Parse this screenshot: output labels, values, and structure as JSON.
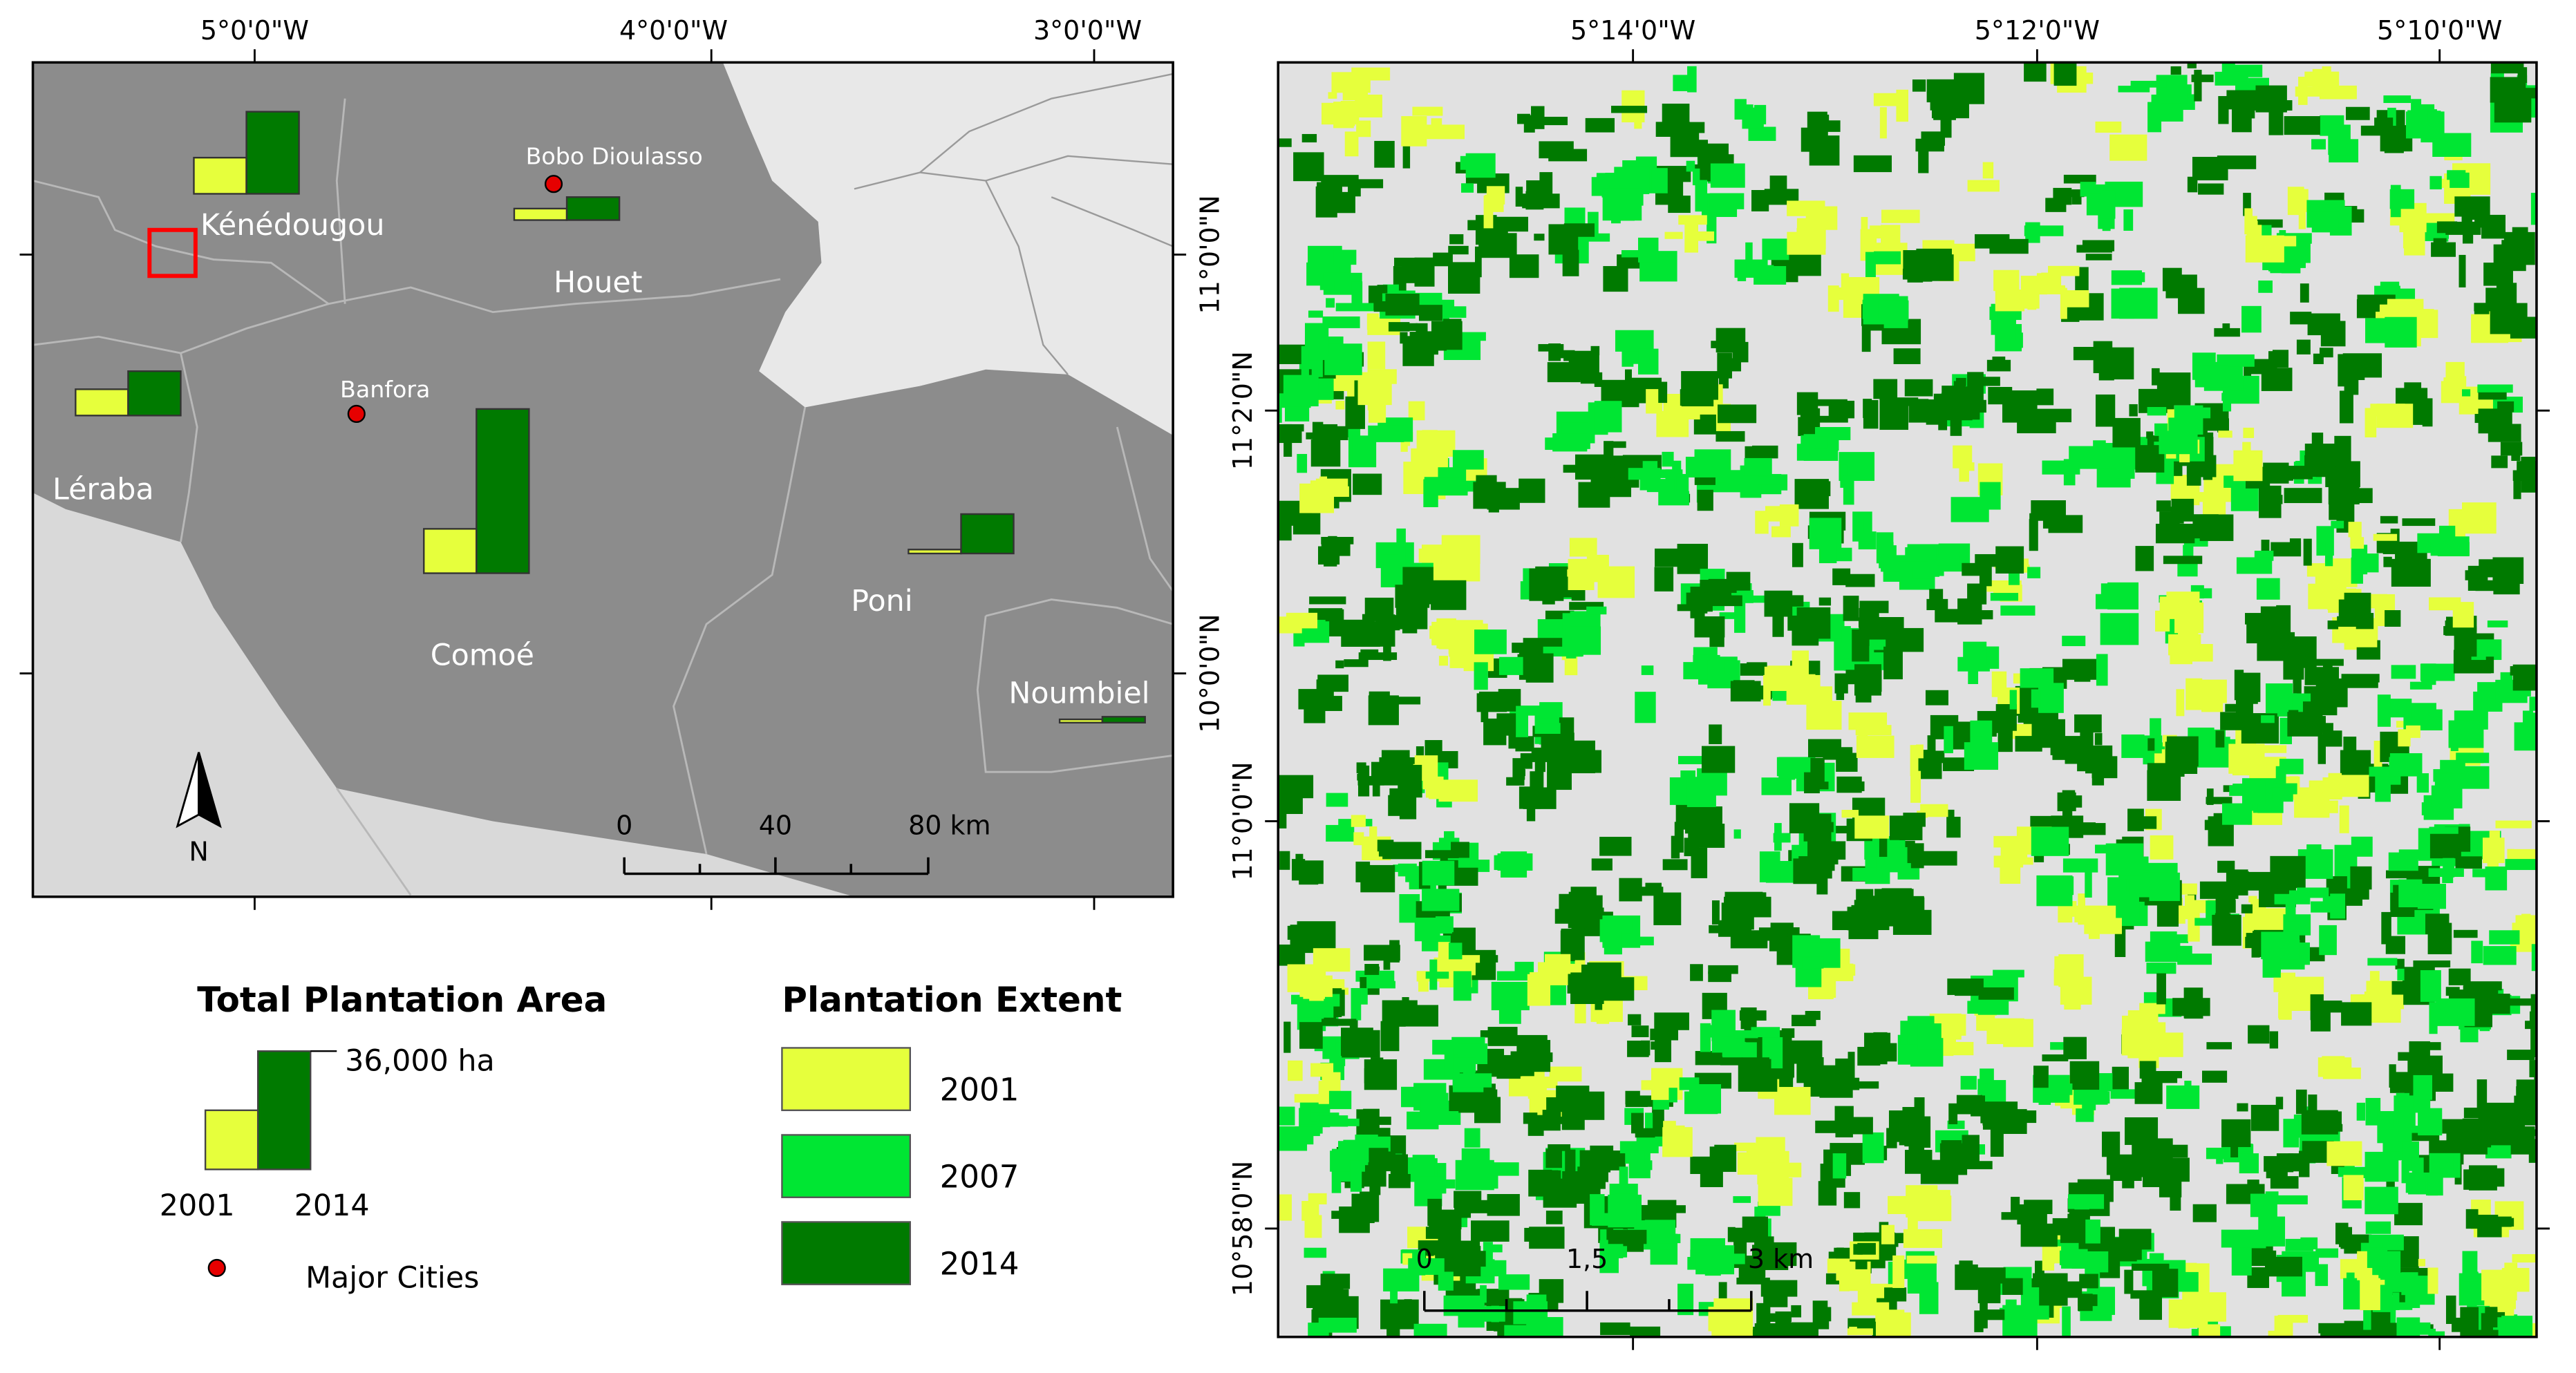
{
  "left_map": {
    "top_lon_labels": [
      "5°0'0\"W",
      "4°0'0\"W",
      "3°0'0\"W"
    ],
    "right_lat_labels": [
      "11°0'0\"N",
      "10°0'0\"N"
    ],
    "provinces": [
      "Kénédougou",
      "Houet",
      "Léraba",
      "Comoé",
      "Poni",
      "Noumbiel"
    ],
    "cities": [
      "Bobo Dioulasso",
      "Banfora"
    ],
    "bars": [
      {
        "province": "Kénédougou",
        "y2001": 11000,
        "y2014": 25000
      },
      {
        "province": "Houet",
        "y2001": 3500,
        "y2014": 7000
      },
      {
        "province": "Léraba",
        "y2001": 8000,
        "y2014": 13500
      },
      {
        "province": "Comoé",
        "y2001": 13500,
        "y2014": 50000
      },
      {
        "province": "Poni",
        "y2001": 1200,
        "y2014": 12000
      },
      {
        "province": "Noumbiel",
        "y2001": 300,
        "y2014": 1800
      }
    ],
    "north_label": "N",
    "scale_labels": [
      "0",
      "40",
      "80 km"
    ]
  },
  "legend_total": {
    "title": "Total Plantation Area",
    "value_label": "36,000 ha",
    "year_labels": [
      "2001",
      "2014"
    ],
    "cities_label": "Major Cities"
  },
  "legend_extent": {
    "title": "Plantation Extent",
    "items": [
      {
        "label": "2001",
        "color": "#e6ff3c"
      },
      {
        "label": "2007",
        "color": "#00e633"
      },
      {
        "label": "2014",
        "color": "#007a00"
      }
    ]
  },
  "right_map": {
    "top_lon_labels": [
      "5°14'0\"W",
      "5°12'0\"W",
      "5°10'0\"W"
    ],
    "left_lat_labels": [
      "11°2'0\"N",
      "11°0'0\"N",
      "10°58'0\"N"
    ],
    "scale_labels": [
      "0",
      "1,5",
      "3 km"
    ]
  },
  "colors": {
    "province_fill": "#8c8c8c",
    "outside_fill": "#dcdcdc",
    "bar_2001": "#e6ff3c",
    "bar_2014": "#007a00",
    "city_dot": "#e60000",
    "study_box": "#ff0000",
    "right_bg": "#e1e1e1"
  }
}
